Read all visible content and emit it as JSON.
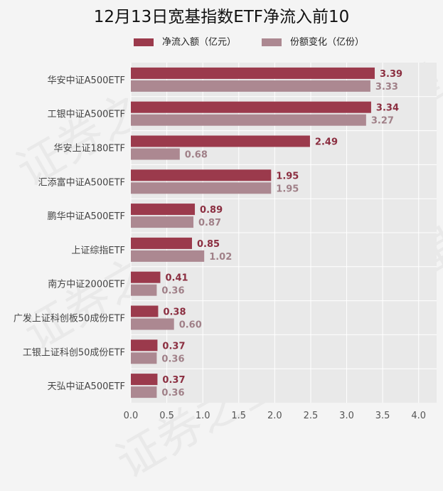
{
  "chart_data": {
    "type": "bar",
    "orientation": "horizontal",
    "title": "12月13日宽基指数ETF净流入前10",
    "categories": [
      "华安中证A500ETF",
      "工银中证A500ETF",
      "华安上证180ETF",
      "汇添富中证A500ETF",
      "鹏华中证A500ETF",
      "上证综指ETF",
      "南方中证2000ETF",
      "广发上证科创板50成份ETF",
      "工银上证科创50成份ETF",
      "天弘中证A500ETF"
    ],
    "series": [
      {
        "name": "净流入额（亿元）",
        "color": "#9b3a4c",
        "label_color": "#8b2e40",
        "values": [
          3.39,
          3.34,
          2.49,
          1.95,
          0.89,
          0.85,
          0.41,
          0.38,
          0.37,
          0.37
        ]
      },
      {
        "name": "份额变化（亿份）",
        "color": "#ac8891",
        "label_color": "#a08088",
        "values": [
          3.33,
          3.27,
          0.68,
          1.95,
          0.87,
          1.02,
          0.36,
          0.6,
          0.36,
          0.36
        ]
      }
    ],
    "xlim": [
      0,
      4.25
    ],
    "xticks": [
      "0.0",
      "0.5",
      "1.0",
      "1.5",
      "2.0",
      "2.5",
      "3.0",
      "3.5",
      "4.0"
    ],
    "xtick_values": [
      0,
      0.5,
      1,
      1.5,
      2,
      2.5,
      3,
      3.5,
      4
    ],
    "grid": true,
    "legend_position": "top",
    "watermark": "证券之星"
  }
}
